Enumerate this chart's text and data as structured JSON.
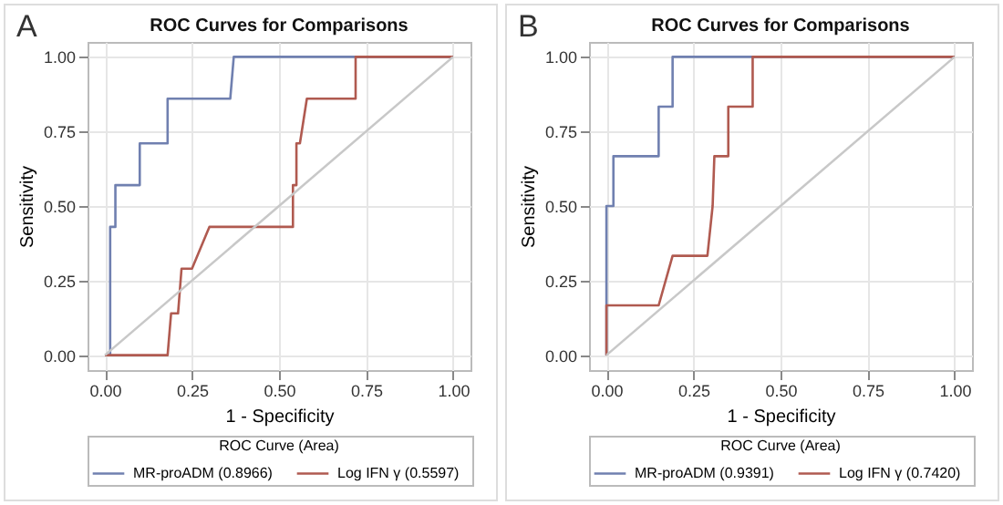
{
  "chart_data": [
    {
      "type": "line",
      "title": "ROC Curves for Comparisons",
      "xlabel": "1 - Specificity",
      "ylabel": "Sensitivity",
      "legend_title": "ROC Curve (Area)",
      "annotations": [
        "A"
      ],
      "xlim": [
        -0.05,
        1.05
      ],
      "ylim": [
        -0.05,
        1.05
      ],
      "xticks": [
        {
          "value": 0,
          "label": "0.00"
        },
        {
          "value": 0.25,
          "label": "0.25"
        },
        {
          "value": 0.5,
          "label": "0.50"
        },
        {
          "value": 0.75,
          "label": "0.75"
        },
        {
          "value": 1,
          "label": "1.00"
        }
      ],
      "yticks": [
        {
          "value": 0,
          "label": "0.00"
        },
        {
          "value": 0.25,
          "label": "0.25"
        },
        {
          "value": 0.5,
          "label": "0.50"
        },
        {
          "value": 0.75,
          "label": "0.75"
        },
        {
          "value": 1,
          "label": "1.00"
        }
      ],
      "grid": true,
      "legend": "bottom",
      "line_style": "solid",
      "series": [
        {
          "name": "MR-proADM  (0.8966)",
          "color": "#7080b0",
          "x": [
            0,
            0.015,
            0.015,
            0.03,
            0.03,
            0.1,
            0.1,
            0.18,
            0.18,
            0.36,
            0.37,
            1
          ],
          "values": [
            0,
            0,
            0.43,
            0.43,
            0.57,
            0.57,
            0.71,
            0.71,
            0.86,
            0.86,
            1,
            1
          ]
        },
        {
          "name": "Log  IFN γ  (0.5597)",
          "color": "#b05a50",
          "x": [
            0,
            0.18,
            0.19,
            0.21,
            0.22,
            0.25,
            0.3,
            0.54,
            0.54,
            0.55,
            0.55,
            0.56,
            0.58,
            0.72,
            0.72,
            1
          ],
          "values": [
            0,
            0,
            0.14,
            0.14,
            0.29,
            0.29,
            0.43,
            0.43,
            0.57,
            0.57,
            0.71,
            0.71,
            0.86,
            0.86,
            1,
            1
          ]
        },
        {
          "type": "line",
          "color": "#c8c8c8",
          "x": [
            0,
            1
          ],
          "values": [
            0,
            1
          ]
        }
      ]
    },
    {
      "type": "line",
      "title": "ROC Curves for Comparisons",
      "xlabel": "1 - Specificity",
      "ylabel": "Sensitivity",
      "legend_title": "ROC Curve (Area)",
      "annotations": [
        "B"
      ],
      "xlim": [
        -0.05,
        1.05
      ],
      "ylim": [
        -0.05,
        1.05
      ],
      "xticks": [
        {
          "value": 0,
          "label": "0.00"
        },
        {
          "value": 0.25,
          "label": "0.25"
        },
        {
          "value": 0.5,
          "label": "0.50"
        },
        {
          "value": 0.75,
          "label": "0.75"
        },
        {
          "value": 1,
          "label": "1.00"
        }
      ],
      "yticks": [
        {
          "value": 0,
          "label": "0.00"
        },
        {
          "value": 0.25,
          "label": "0.25"
        },
        {
          "value": 0.5,
          "label": "0.50"
        },
        {
          "value": 0.75,
          "label": "0.75"
        },
        {
          "value": 1,
          "label": "1.00"
        }
      ],
      "grid": true,
      "legend": "bottom",
      "line_style": "solid",
      "series": [
        {
          "name": "MR-proADM  (0.9391)",
          "color": "#7080b0",
          "x": [
            0,
            0,
            0.02,
            0.02,
            0.15,
            0.15,
            0.19,
            0.19,
            1
          ],
          "values": [
            0,
            0.5,
            0.5,
            0.667,
            0.667,
            0.833,
            0.833,
            1,
            1
          ]
        },
        {
          "name": "Log  IFN γ  (0.7420)",
          "color": "#b05a50",
          "x": [
            0,
            0,
            0.15,
            0.19,
            0.29,
            0.305,
            0.31,
            0.35,
            0.35,
            0.42,
            0.42,
            1
          ],
          "values": [
            0,
            0.167,
            0.167,
            0.333,
            0.333,
            0.5,
            0.667,
            0.667,
            0.833,
            0.833,
            1,
            1
          ]
        },
        {
          "type": "line",
          "color": "#c8c8c8",
          "x": [
            0,
            1
          ],
          "values": [
            0,
            1
          ]
        }
      ]
    }
  ]
}
